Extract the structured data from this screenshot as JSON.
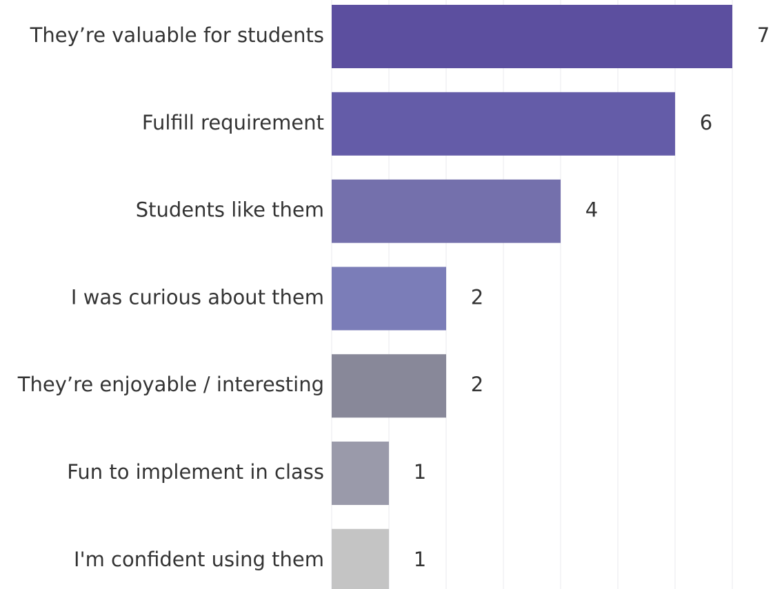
{
  "chart_data": {
    "type": "barh",
    "categories": [
      "They’re valuable for students",
      "Fulfill requirement",
      "Students like them",
      "I was curious about them",
      "They’re enjoyable / interesting",
      "Fun to implement in class",
      "I'm confident using them"
    ],
    "values": [
      7,
      6,
      4,
      2,
      2,
      1,
      1
    ],
    "colors": [
      "#5c4f9f",
      "#645ca8",
      "#7470ac",
      "#7b7db8",
      "#888899",
      "#9a9aaa",
      "#c4c4c4"
    ],
    "xlim": [
      0,
      7
    ],
    "xticks": [
      0,
      1,
      2,
      3,
      4,
      5,
      6,
      7
    ],
    "grid": true
  }
}
